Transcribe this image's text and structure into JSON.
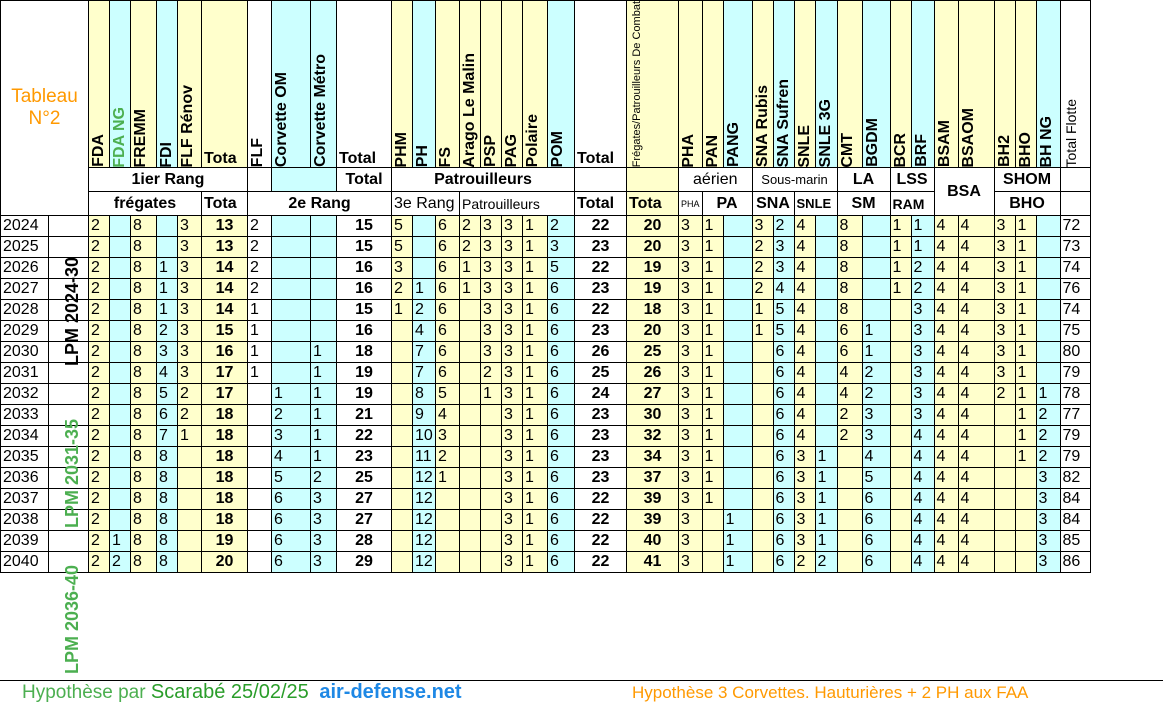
{
  "title": {
    "line1": "Tableau",
    "line2": "N°2"
  },
  "lpm_labels": [
    "LPM 2024-30",
    "LPM 2031-35",
    "LPM 2036-40"
  ],
  "header_top": [
    "FDA",
    "FDA NG",
    "FREMM",
    "FDI",
    "FLF Rénov",
    "Tota",
    "FLF",
    "Corvette OM",
    "Corvette Métro",
    "Total",
    "PHM",
    "PH",
    "FS",
    "Arago Le Malin",
    "PSP",
    "PAG",
    "Polaire",
    "POM",
    "Total",
    "Frégates/Patrouilleurs De Combat",
    "PHA",
    "PAN",
    "PANG",
    "SNA Rubis",
    "SNA Sufren",
    "SNLE",
    "SNLE 3G",
    "CMT",
    "BGDM",
    "BCR",
    "BRF",
    "BSAM",
    "BSAOM",
    "BH2",
    "BHO",
    "BH NG",
    "Total Flotte"
  ],
  "group_row1": {
    "rang1": "1ier Rang",
    "rang1_sup": "ier",
    "total": "Total",
    "patrouilleurs": "Patrouilleurs",
    "aerien": "aérien",
    "sousmarin": "Sous-marin",
    "la": "LA",
    "lss": "LSS",
    "bsa": "BSA",
    "shom": "SHOM"
  },
  "group_row2": {
    "fregates": "frégates",
    "tota1": "Tota",
    "rang2": "2e Rang",
    "rang3": "3e Rang",
    "patrouilleurs": "Patrouilleurs",
    "total": "Total",
    "tota2": "Tota",
    "pha": "PHA",
    "pa": "PA",
    "sna": "SNA",
    "snle": "SNLE",
    "sm": "SM",
    "ram": "RAM",
    "bho": "BHO"
  },
  "rows": [
    {
      "y": "2024",
      "v": [
        "2",
        "",
        "8",
        "",
        "3",
        "13",
        "2",
        "",
        "",
        "15",
        "5",
        "",
        "6",
        "2",
        "3",
        "3",
        "1",
        "2",
        "22",
        "20",
        "3",
        "1",
        "",
        "3",
        "2",
        "4",
        "",
        "8",
        "",
        "1",
        "1",
        "4",
        "4",
        "3",
        "1",
        "",
        "72"
      ]
    },
    {
      "y": "2025",
      "v": [
        "2",
        "",
        "8",
        "",
        "3",
        "13",
        "2",
        "",
        "",
        "15",
        "5",
        "",
        "6",
        "2",
        "3",
        "3",
        "1",
        "3",
        "23",
        "20",
        "3",
        "1",
        "",
        "2",
        "3",
        "4",
        "",
        "8",
        "",
        "1",
        "1",
        "4",
        "4",
        "3",
        "1",
        "",
        "73"
      ]
    },
    {
      "y": "2026",
      "v": [
        "2",
        "",
        "8",
        "1",
        "3",
        "14",
        "2",
        "",
        "",
        "16",
        "3",
        "",
        "6",
        "1",
        "3",
        "3",
        "1",
        "5",
        "22",
        "19",
        "3",
        "1",
        "",
        "2",
        "3",
        "4",
        "",
        "8",
        "",
        "1",
        "2",
        "4",
        "4",
        "3",
        "1",
        "",
        "74"
      ]
    },
    {
      "y": "2027",
      "v": [
        "2",
        "",
        "8",
        "1",
        "3",
        "14",
        "2",
        "",
        "",
        "16",
        "2",
        "1",
        "6",
        "1",
        "3",
        "3",
        "1",
        "6",
        "23",
        "19",
        "3",
        "1",
        "",
        "2",
        "4",
        "4",
        "",
        "8",
        "",
        "1",
        "2",
        "4",
        "4",
        "3",
        "1",
        "",
        "76"
      ]
    },
    {
      "y": "2028",
      "v": [
        "2",
        "",
        "8",
        "1",
        "3",
        "14",
        "1",
        "",
        "",
        "15",
        "1",
        "2",
        "6",
        "",
        "3",
        "3",
        "1",
        "6",
        "22",
        "18",
        "3",
        "1",
        "",
        "1",
        "5",
        "4",
        "",
        "8",
        "",
        "",
        "3",
        "4",
        "4",
        "3",
        "1",
        "",
        "74"
      ]
    },
    {
      "y": "2029",
      "v": [
        "2",
        "",
        "8",
        "2",
        "3",
        "15",
        "1",
        "",
        "",
        "16",
        "",
        "4",
        "6",
        "",
        "3",
        "3",
        "1",
        "6",
        "23",
        "20",
        "3",
        "1",
        "",
        "1",
        "5",
        "4",
        "",
        "6",
        "1",
        "",
        "3",
        "4",
        "4",
        "3",
        "1",
        "",
        "75"
      ]
    },
    {
      "y": "2030",
      "v": [
        "2",
        "",
        "8",
        "3",
        "3",
        "16",
        "1",
        "",
        "1",
        "18",
        "",
        "7",
        "6",
        "",
        "3",
        "3",
        "1",
        "6",
        "26",
        "25",
        "3",
        "1",
        "",
        "",
        "6",
        "4",
        "",
        "6",
        "1",
        "",
        "3",
        "4",
        "4",
        "3",
        "1",
        "",
        "80"
      ]
    },
    {
      "y": "2031",
      "v": [
        "2",
        "",
        "8",
        "4",
        "3",
        "17",
        "1",
        "",
        "1",
        "19",
        "",
        "7",
        "6",
        "",
        "2",
        "3",
        "1",
        "6",
        "25",
        "26",
        "3",
        "1",
        "",
        "",
        "6",
        "4",
        "",
        "4",
        "2",
        "",
        "3",
        "4",
        "4",
        "3",
        "1",
        "",
        "79"
      ]
    },
    {
      "y": "2032",
      "v": [
        "2",
        "",
        "8",
        "5",
        "2",
        "17",
        "",
        "1",
        "1",
        "19",
        "",
        "8",
        "5",
        "",
        "1",
        "3",
        "1",
        "6",
        "24",
        "27",
        "3",
        "1",
        "",
        "",
        "6",
        "4",
        "",
        "4",
        "2",
        "",
        "3",
        "4",
        "4",
        "2",
        "1",
        "1",
        "78"
      ]
    },
    {
      "y": "2033",
      "v": [
        "2",
        "",
        "8",
        "6",
        "2",
        "18",
        "",
        "2",
        "1",
        "21",
        "",
        "9",
        "4",
        "",
        "",
        "3",
        "1",
        "6",
        "23",
        "30",
        "3",
        "1",
        "",
        "",
        "6",
        "4",
        "",
        "2",
        "3",
        "",
        "3",
        "4",
        "4",
        "",
        "1",
        "2",
        "77"
      ]
    },
    {
      "y": "2034",
      "v": [
        "2",
        "",
        "8",
        "7",
        "1",
        "18",
        "",
        "3",
        "1",
        "22",
        "",
        "10",
        "3",
        "",
        "",
        "3",
        "1",
        "6",
        "23",
        "32",
        "3",
        "1",
        "",
        "",
        "6",
        "4",
        "",
        "2",
        "3",
        "",
        "4",
        "4",
        "4",
        "",
        "1",
        "2",
        "79"
      ]
    },
    {
      "y": "2035",
      "v": [
        "2",
        "",
        "8",
        "8",
        "",
        "18",
        "",
        "4",
        "1",
        "23",
        "",
        "11",
        "2",
        "",
        "",
        "3",
        "1",
        "6",
        "23",
        "34",
        "3",
        "1",
        "",
        "",
        "6",
        "3",
        "1",
        "",
        "4",
        "",
        "4",
        "4",
        "4",
        "",
        "1",
        "2",
        "79"
      ]
    },
    {
      "y": "2036",
      "v": [
        "2",
        "",
        "8",
        "8",
        "",
        "18",
        "",
        "5",
        "2",
        "25",
        "",
        "12",
        "1",
        "",
        "",
        "3",
        "1",
        "6",
        "23",
        "37",
        "3",
        "1",
        "",
        "",
        "6",
        "3",
        "1",
        "",
        "5",
        "",
        "4",
        "4",
        "4",
        "",
        "",
        "3",
        "82"
      ]
    },
    {
      "y": "2037",
      "v": [
        "2",
        "",
        "8",
        "8",
        "",
        "18",
        "",
        "6",
        "3",
        "27",
        "",
        "12",
        "",
        "",
        "",
        "3",
        "1",
        "6",
        "22",
        "39",
        "3",
        "1",
        "",
        "",
        "6",
        "3",
        "1",
        "",
        "6",
        "",
        "4",
        "4",
        "4",
        "",
        "",
        "3",
        "84"
      ]
    },
    {
      "y": "2038",
      "v": [
        "2",
        "",
        "8",
        "8",
        "",
        "18",
        "",
        "6",
        "3",
        "27",
        "",
        "12",
        "",
        "",
        "",
        "3",
        "1",
        "6",
        "22",
        "39",
        "3",
        "",
        "1",
        "",
        "6",
        "3",
        "1",
        "",
        "6",
        "",
        "4",
        "4",
        "4",
        "",
        "",
        "3",
        "84"
      ]
    },
    {
      "y": "2039",
      "v": [
        "2",
        "1",
        "8",
        "8",
        "",
        "19",
        "",
        "6",
        "3",
        "28",
        "",
        "12",
        "",
        "",
        "",
        "3",
        "1",
        "6",
        "22",
        "40",
        "3",
        "",
        "1",
        "",
        "6",
        "3",
        "1",
        "",
        "6",
        "",
        "4",
        "4",
        "4",
        "",
        "",
        "3",
        "85"
      ]
    },
    {
      "y": "2040",
      "v": [
        "2",
        "2",
        "8",
        "8",
        "",
        "20",
        "",
        "6",
        "3",
        "29",
        "",
        "12",
        "",
        "",
        "",
        "3",
        "1",
        "6",
        "22",
        "41",
        "3",
        "",
        "1",
        "",
        "6",
        "2",
        "2",
        "",
        "6",
        "",
        "4",
        "4",
        "4",
        "",
        "",
        "3",
        "86"
      ]
    }
  ],
  "footer": {
    "left_a": "Hypothèse par",
    "left_b": "Scarabé 25/02/25",
    "left_c": "air-defense.net",
    "right": "Hypothèse 3 Corvettes. Hauturières + 2 PH aux FAA"
  }
}
